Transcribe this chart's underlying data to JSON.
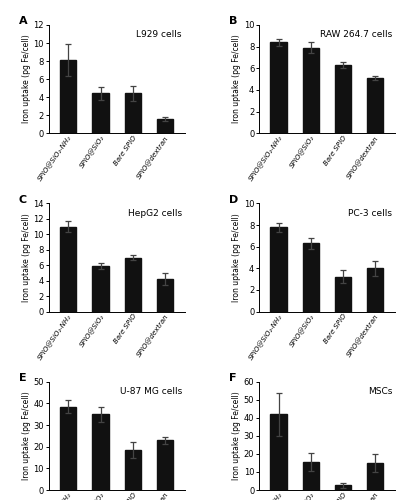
{
  "panels": [
    {
      "label": "A",
      "title": "L929 cells",
      "ylim": [
        0,
        12
      ],
      "yticks": [
        0,
        2,
        4,
        6,
        8,
        10,
        12
      ],
      "values": [
        8.1,
        4.4,
        4.4,
        1.6
      ],
      "errors": [
        1.8,
        0.7,
        0.8,
        0.2
      ]
    },
    {
      "label": "B",
      "title": "RAW 264.7 cells",
      "ylim": [
        0,
        10
      ],
      "yticks": [
        0,
        2,
        4,
        6,
        8,
        10
      ],
      "values": [
        8.4,
        7.9,
        6.3,
        5.1
      ],
      "errors": [
        0.3,
        0.5,
        0.3,
        0.2
      ]
    },
    {
      "label": "C",
      "title": "HepG2 cells",
      "ylim": [
        0,
        14
      ],
      "yticks": [
        0,
        2,
        4,
        6,
        8,
        10,
        12,
        14
      ],
      "values": [
        11.0,
        5.9,
        7.0,
        4.2
      ],
      "errors": [
        0.7,
        0.4,
        0.3,
        0.8
      ]
    },
    {
      "label": "D",
      "title": "PC-3 cells",
      "ylim": [
        0,
        10
      ],
      "yticks": [
        0,
        2,
        4,
        6,
        8,
        10
      ],
      "values": [
        7.8,
        6.3,
        3.2,
        4.0
      ],
      "errors": [
        0.4,
        0.5,
        0.6,
        0.7
      ]
    },
    {
      "label": "E",
      "title": "U-87 MG cells",
      "ylim": [
        0,
        50
      ],
      "yticks": [
        0,
        10,
        20,
        30,
        40,
        50
      ],
      "values": [
        38.5,
        35.0,
        18.5,
        23.0
      ],
      "errors": [
        3.0,
        3.5,
        3.5,
        1.5
      ]
    },
    {
      "label": "F",
      "title": "MSCs",
      "ylim": [
        0,
        60
      ],
      "yticks": [
        0,
        10,
        20,
        30,
        40,
        50,
        60
      ],
      "values": [
        42.0,
        15.5,
        2.5,
        15.0
      ],
      "errors": [
        12.0,
        5.0,
        1.5,
        5.0
      ]
    }
  ],
  "categories": [
    "SPIO@SiO₂-NH₂",
    "SPIO@SiO₂",
    "Bare SPIO",
    "SPIO@dextran"
  ],
  "bar_color": "#111111",
  "error_color": "#444444",
  "ylabel": "Iron uptake (pg Fe/cell)",
  "bar_width": 0.5,
  "figsize": [
    4.07,
    5.0
  ],
  "dpi": 100
}
